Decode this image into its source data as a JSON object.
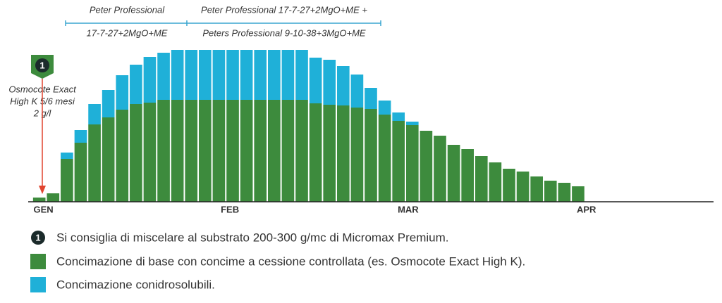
{
  "chart_data": {
    "type": "stacked_bar",
    "marker": "1",
    "header_groups": [
      {
        "lines": [
          "Peter Professional",
          "17-7-27+2MgO+ME"
        ]
      },
      {
        "lines": [
          "Peter Professional 17-7-27+2MgO+ME +",
          "Peters Professional 9-10-38+3MgO+ME"
        ]
      }
    ],
    "annotation": {
      "lines": [
        "Osmocote Exact",
        "High K 5/6 mesi",
        "2 g/l"
      ],
      "color": "#e0442f"
    },
    "note": "Si consiglia di miscelare al substrato 200-300 g/mc di Micromax Premium.",
    "xlim": [
      -0.8,
      48.8
    ],
    "xticks": [
      {
        "value": 0.3,
        "label": "GEN"
      },
      {
        "value": 13.8,
        "label": "FEB"
      },
      {
        "value": 26.7,
        "label": "MAR"
      },
      {
        "value": 39.6,
        "label": "APR"
      }
    ],
    "ylim": [
      0,
      220
    ],
    "series": [
      {
        "name": "Concimazione di base con concime a cessione controllata (es. Osmocote Exact High K).",
        "color": "#3d8b3d",
        "values": [
          6,
          12,
          61,
          84,
          110,
          120,
          131,
          139,
          141,
          145,
          145,
          145,
          145,
          145,
          145,
          145,
          145,
          145,
          145,
          145,
          140,
          138,
          137,
          134,
          132,
          124,
          115,
          109,
          101,
          94,
          81,
          75,
          65,
          56,
          47,
          43,
          36,
          30,
          27,
          22
        ]
      },
      {
        "name": "Concimazione conidrosolubili.",
        "color": "#1fb0d8",
        "values": [
          0,
          0,
          9,
          18,
          29,
          39,
          49,
          56,
          65,
          67,
          71,
          71,
          71,
          71,
          71,
          71,
          71,
          71,
          71,
          71,
          65,
          64,
          56,
          47,
          30,
          20,
          12,
          5,
          0,
          0,
          0,
          0,
          0,
          0,
          0,
          0,
          0,
          0,
          0,
          0
        ]
      }
    ]
  }
}
